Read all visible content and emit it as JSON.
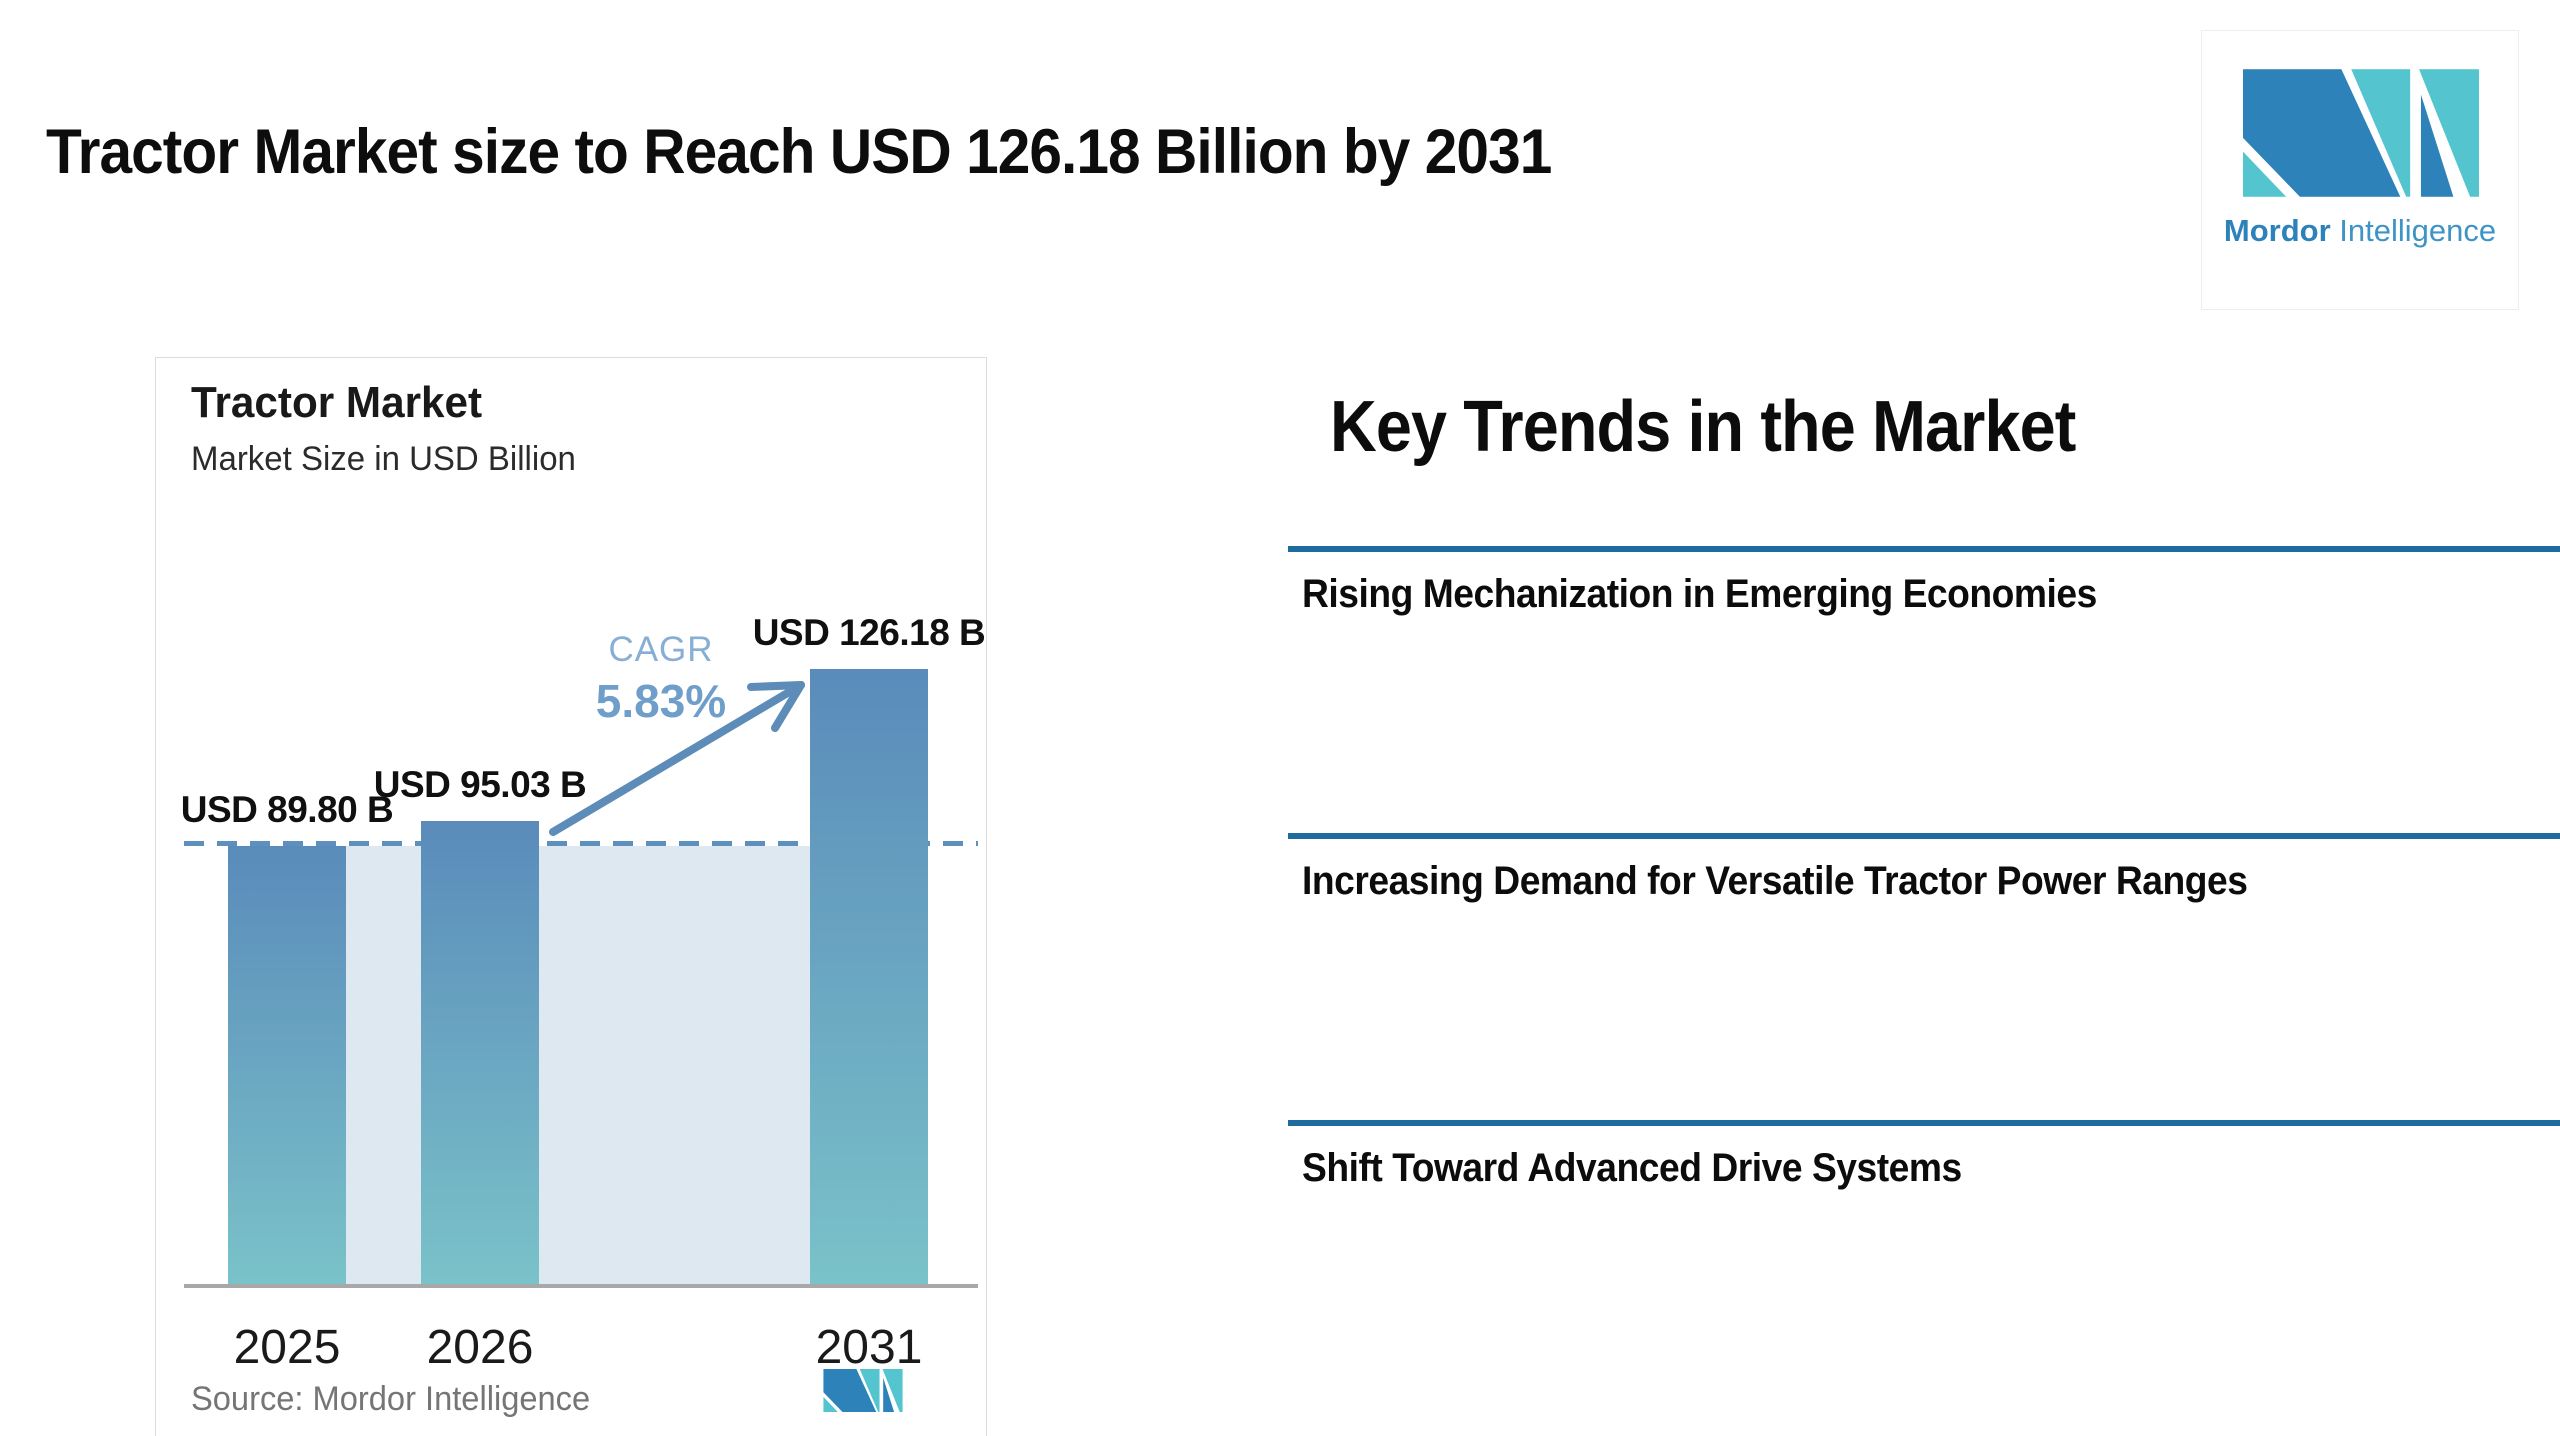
{
  "header": {
    "title": "Tractor Market size to Reach USD 126.18 Billion by 2031",
    "brand": {
      "name_bold": "Mordor",
      "name_regular": "Intelligence"
    }
  },
  "chart_card": {
    "title": "Tractor Market",
    "subtitle": "Market Size in USD Billion",
    "source": "Source: Mordor Intelligence"
  },
  "chart_data": {
    "type": "bar",
    "title": "Tractor Market",
    "subtitle": "Market Size in USD Billion",
    "categories": [
      "2025",
      "2026",
      "2031"
    ],
    "values": [
      89.8,
      95.03,
      126.18
    ],
    "value_labels": [
      "USD 89.80 B",
      "USD 95.03 B",
      "USD 126.18 B"
    ],
    "cagr": {
      "label": "CAGR",
      "value": "5.83%"
    },
    "baseline_dash_at_value": 89.8,
    "ylim": [
      0,
      190
    ],
    "grid": false,
    "legend": false,
    "source": "Source: Mordor Intelligence"
  },
  "key_trends": {
    "heading": "Key Trends in the Market",
    "items": [
      "Rising Mechanization in Emerging Economies",
      "Increasing Demand for Versatile Tractor Power Ranges",
      "Shift Toward Advanced Drive Systems"
    ]
  },
  "colors": {
    "divider": "#1e6ba0",
    "dash": "#5e90bd",
    "band": "#dde8f1",
    "bar_top": "#5a8bba",
    "bar_bottom": "#7ac2c9",
    "arrow": "#5d8cb8",
    "cagr_label": "#87aed4",
    "cagr_value": "#6f9ecb",
    "brand_blue": "#2e82ba",
    "brand_teal": "#54c5cf",
    "axis": "#a8a8a8",
    "source_text": "#757575"
  }
}
